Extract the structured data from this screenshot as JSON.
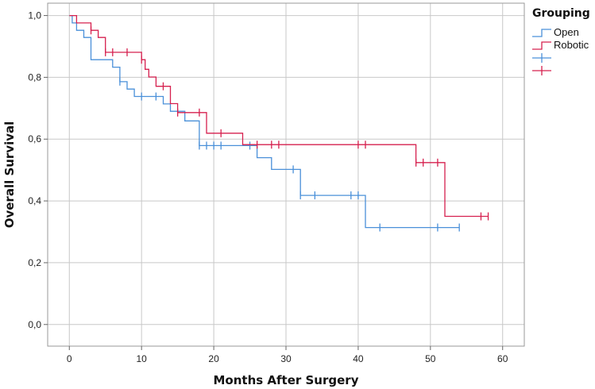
{
  "chart_data": {
    "type": "line",
    "subtype": "kaplan-meier-step",
    "xlabel": "Months After Surgery",
    "ylabel": "Overall Survival",
    "xlim": [
      -3,
      63
    ],
    "ylim": [
      -0.07,
      1.04
    ],
    "x_ticks": [
      "0",
      "10",
      "20",
      "30",
      "40",
      "50",
      "60"
    ],
    "x_tick_values": [
      0,
      10,
      20,
      30,
      40,
      50,
      60
    ],
    "y_ticks": [
      "0,0",
      "0,2",
      "0,4",
      "0,6",
      "0,8",
      "1,0"
    ],
    "y_tick_values": [
      0.0,
      0.2,
      0.4,
      0.6,
      0.8,
      1.0
    ],
    "grid": true,
    "legend": {
      "title": "Grouping",
      "placement": "top-right",
      "entries": [
        "Open",
        "Robotic",
        "",
        ""
      ]
    },
    "series": [
      {
        "name": "Open",
        "color": "#4a90d9",
        "steps": [
          [
            0,
            1.0
          ],
          [
            0.4,
            0.976
          ],
          [
            1,
            0.952
          ],
          [
            2,
            0.929
          ],
          [
            3,
            0.857
          ],
          [
            6,
            0.833
          ],
          [
            7,
            0.786
          ],
          [
            8,
            0.762
          ],
          [
            9,
            0.738
          ],
          [
            13,
            0.714
          ],
          [
            14,
            0.69
          ],
          [
            16,
            0.659
          ],
          [
            18,
            0.579
          ],
          [
            24,
            0.579
          ],
          [
            26,
            0.54
          ],
          [
            28,
            0.502
          ],
          [
            31,
            0.502
          ],
          [
            32,
            0.418
          ],
          [
            41,
            0.314
          ],
          [
            54,
            0.314
          ]
        ],
        "censored": [
          7,
          10,
          12,
          18,
          19,
          20,
          21,
          25,
          31,
          32,
          34,
          39,
          40,
          43,
          51,
          54
        ]
      },
      {
        "name": "Robotic",
        "color": "#d6204f",
        "steps": [
          [
            0,
            1.0
          ],
          [
            1,
            0.976
          ],
          [
            3,
            0.952
          ],
          [
            4,
            0.929
          ],
          [
            5,
            0.881
          ],
          [
            9,
            0.881
          ],
          [
            10,
            0.857
          ],
          [
            10.5,
            0.826
          ],
          [
            11,
            0.801
          ],
          [
            12,
            0.771
          ],
          [
            14,
            0.715
          ],
          [
            15,
            0.686
          ],
          [
            19,
            0.619
          ],
          [
            24,
            0.582
          ],
          [
            48,
            0.524
          ],
          [
            52,
            0.35
          ],
          [
            58,
            0.35
          ]
        ],
        "censored": [
          3,
          5,
          6,
          8,
          10,
          13,
          15,
          18,
          21,
          26,
          28,
          29,
          40,
          41,
          48,
          49,
          51,
          57,
          58
        ]
      }
    ]
  }
}
